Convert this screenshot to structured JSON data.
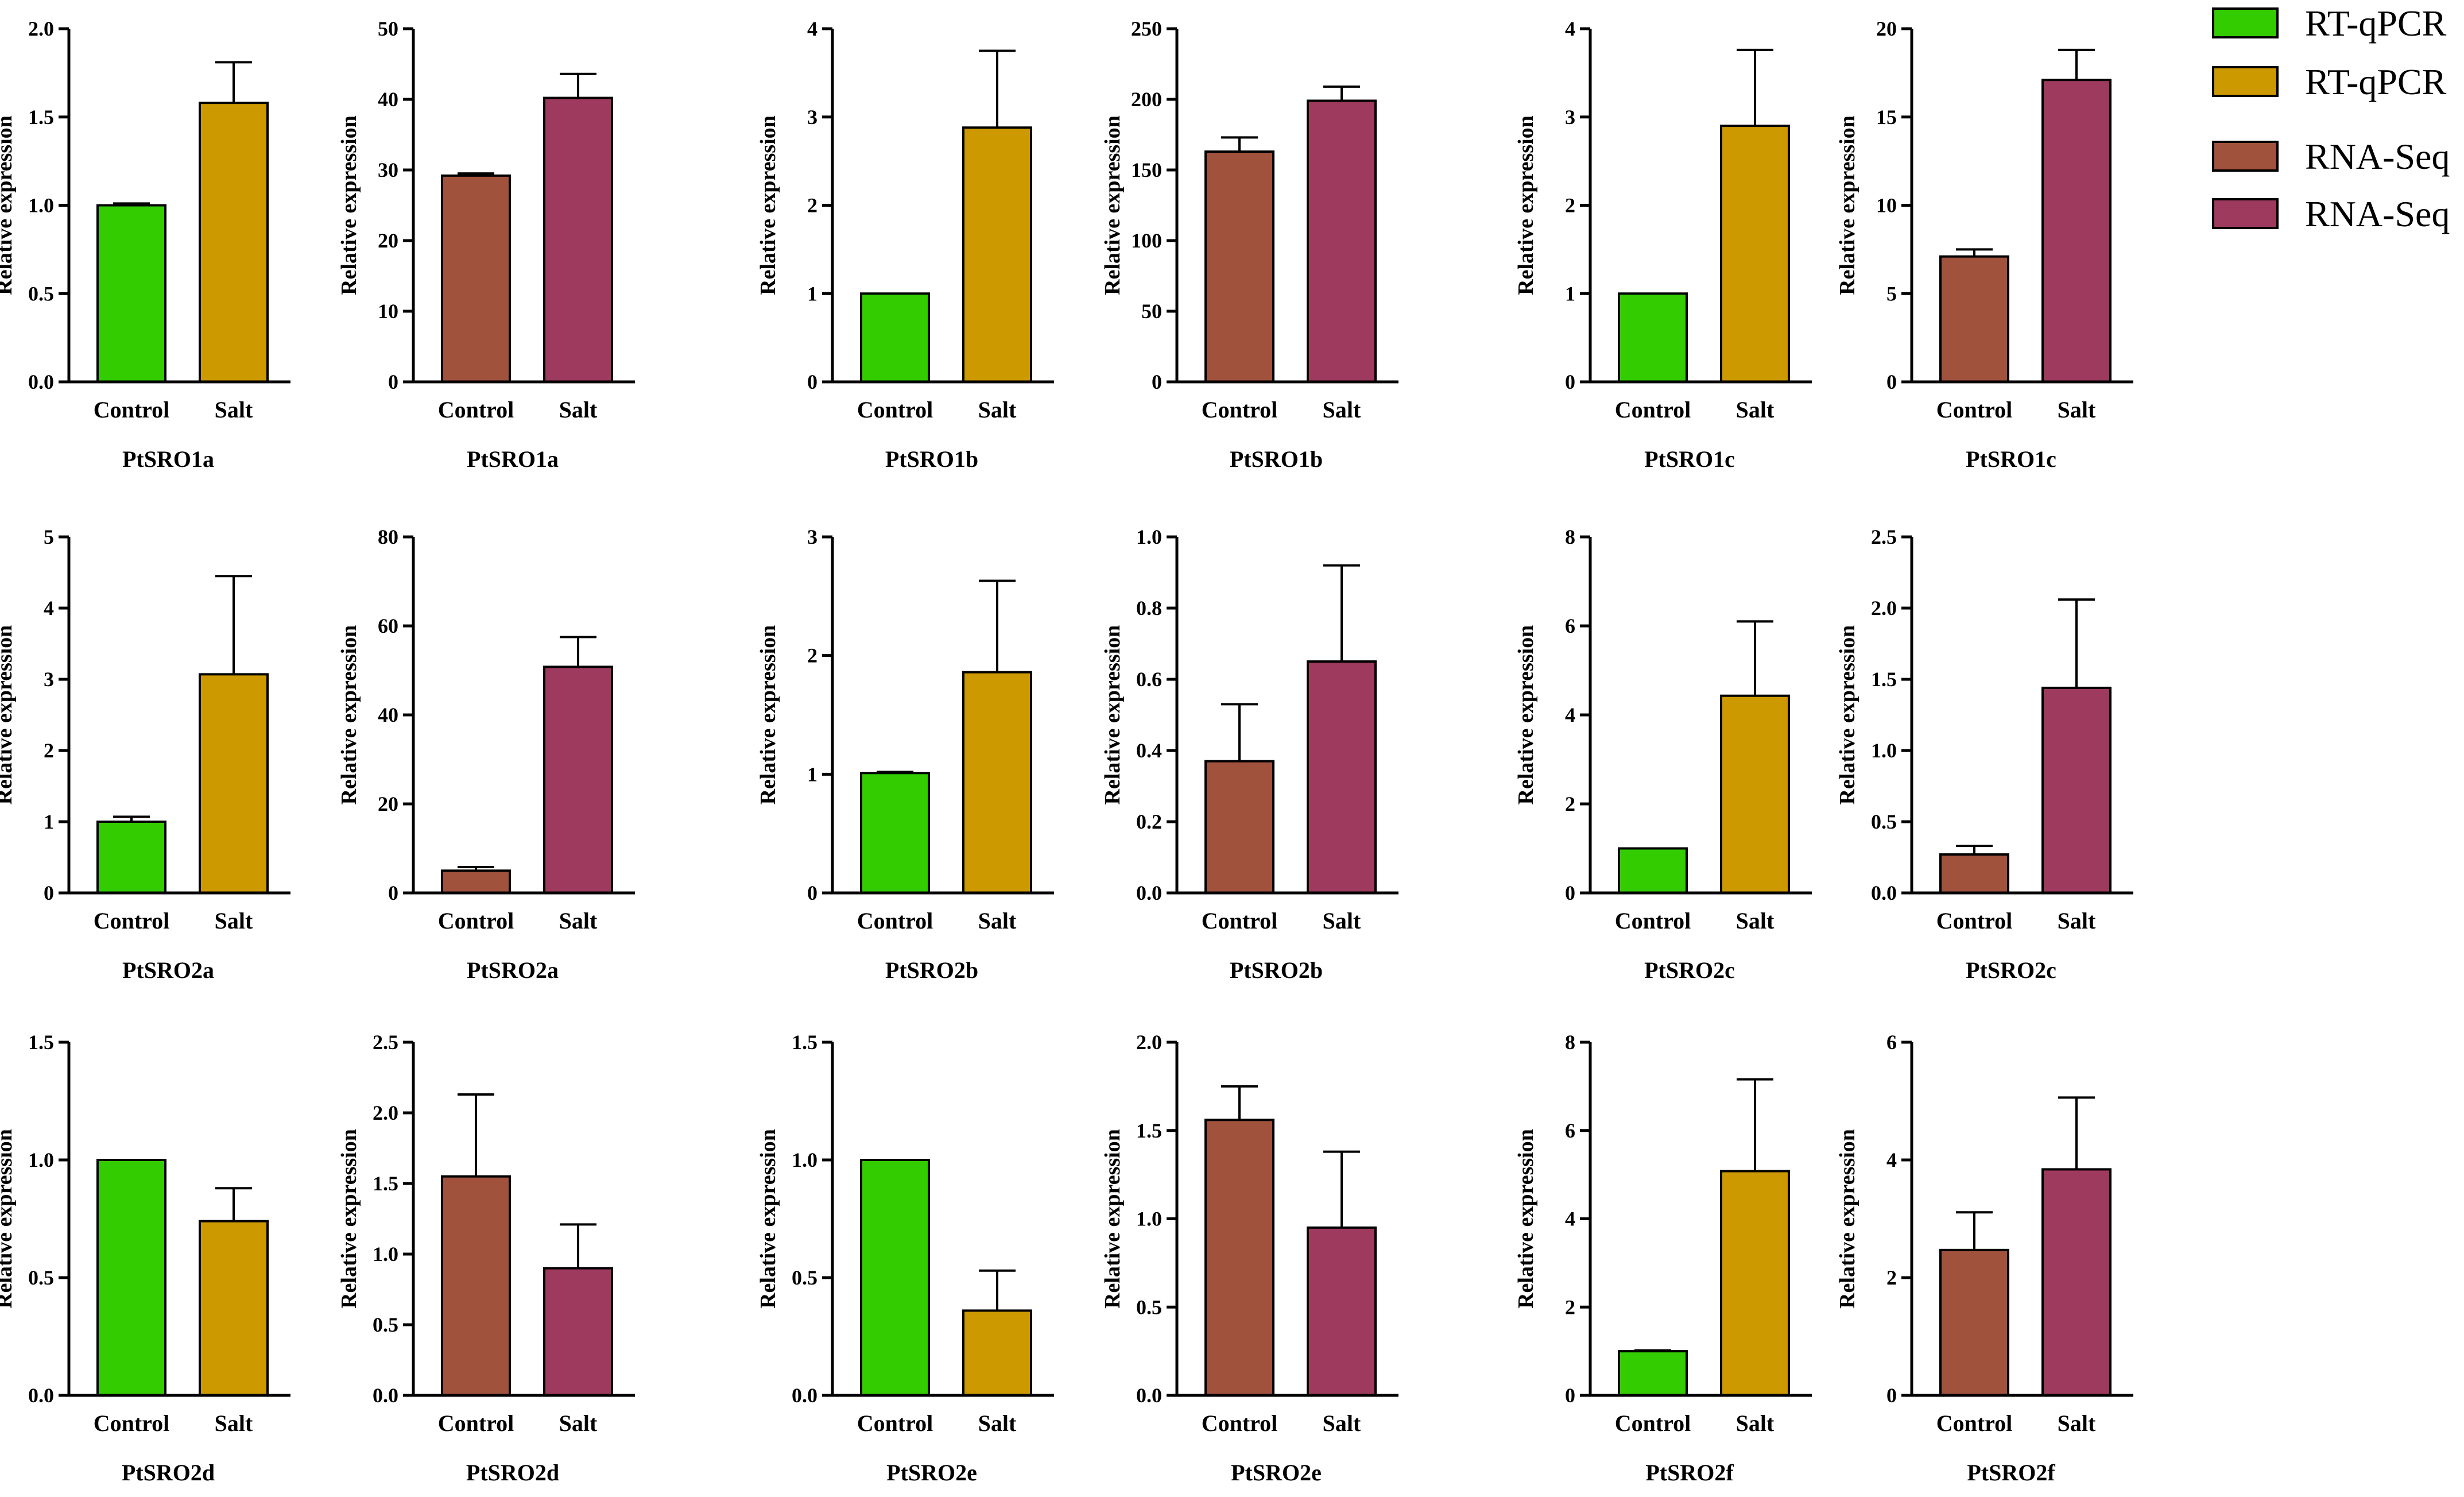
{
  "figure": {
    "colors": {
      "rtqpcr_control": "#33cc00",
      "rtqpcr_salt": "#cc9900",
      "rnaseq_control": "#a0523d",
      "rnaseq_salt": "#9e3a5e"
    },
    "legend": [
      {
        "label": "RT-qPCR",
        "color": "#33cc00"
      },
      {
        "label": "RT-qPCR",
        "color": "#cc9900"
      },
      {
        "label": "RNA-Seq",
        "color": "#a0523d"
      },
      {
        "label": "RNA-Seq",
        "color": "#9e3a5e"
      }
    ]
  },
  "chart_data": [
    {
      "type": "bar",
      "method": "RT-qPCR",
      "title": "PtSRO1a",
      "ylabel": "Relative expression",
      "categories": [
        "Control",
        "Salt"
      ],
      "values": [
        1.0,
        1.58
      ],
      "errors": [
        0.01,
        0.23
      ],
      "ylim": [
        0,
        2.0
      ],
      "yticks": [
        "0.0",
        "0.5",
        "1.0",
        "1.5",
        "2.0"
      ]
    },
    {
      "type": "bar",
      "method": "RNA-Seq",
      "title": "PtSRO1a",
      "ylabel": "Relative expression",
      "categories": [
        "Control",
        "Salt"
      ],
      "values": [
        29.2,
        40.2
      ],
      "errors": [
        0.3,
        3.4
      ],
      "ylim": [
        0,
        50
      ],
      "yticks": [
        "0",
        "10",
        "20",
        "30",
        "40",
        "50"
      ]
    },
    {
      "type": "bar",
      "method": "RT-qPCR",
      "title": "PtSRO1b",
      "ylabel": "Relative expression",
      "categories": [
        "Control",
        "Salt"
      ],
      "values": [
        1.0,
        2.88
      ],
      "errors": [
        0.0,
        0.87
      ],
      "ylim": [
        0,
        4
      ],
      "yticks": [
        "0",
        "1",
        "2",
        "3",
        "4"
      ]
    },
    {
      "type": "bar",
      "method": "RNA-Seq",
      "title": "PtSRO1b",
      "ylabel": "Relative expression",
      "categories": [
        "Control",
        "Salt"
      ],
      "values": [
        163,
        199
      ],
      "errors": [
        10,
        10
      ],
      "ylim": [
        0,
        250
      ],
      "yticks": [
        "0",
        "50",
        "100",
        "150",
        "200",
        "250"
      ]
    },
    {
      "type": "bar",
      "method": "RT-qPCR",
      "title": "PtSRO1c",
      "ylabel": "Relative expression",
      "categories": [
        "Control",
        "Salt"
      ],
      "values": [
        1.0,
        2.9
      ],
      "errors": [
        0.0,
        0.86
      ],
      "ylim": [
        0,
        4
      ],
      "yticks": [
        "0",
        "1",
        "2",
        "3",
        "4"
      ]
    },
    {
      "type": "bar",
      "method": "RNA-Seq",
      "title": "PtSRO1c",
      "ylabel": "Relative expression",
      "categories": [
        "Control",
        "Salt"
      ],
      "values": [
        7.1,
        17.1
      ],
      "errors": [
        0.4,
        1.7
      ],
      "ylim": [
        0,
        20
      ],
      "yticks": [
        "0",
        "5",
        "10",
        "15",
        "20"
      ]
    },
    {
      "type": "bar",
      "method": "RT-qPCR",
      "title": "PtSRO2a",
      "ylabel": "Relative expression",
      "categories": [
        "Control",
        "Salt"
      ],
      "values": [
        1.0,
        3.07
      ],
      "errors": [
        0.07,
        1.38
      ],
      "ylim": [
        0,
        5
      ],
      "yticks": [
        "0",
        "1",
        "2",
        "3",
        "4",
        "5"
      ]
    },
    {
      "type": "bar",
      "method": "RNA-Seq",
      "title": "PtSRO2a",
      "ylabel": "Relative expression",
      "categories": [
        "Control",
        "Salt"
      ],
      "values": [
        5.0,
        50.8
      ],
      "errors": [
        0.8,
        6.7
      ],
      "ylim": [
        0,
        80
      ],
      "yticks": [
        "0",
        "20",
        "40",
        "60",
        "80"
      ]
    },
    {
      "type": "bar",
      "method": "RT-qPCR",
      "title": "PtSRO2b",
      "ylabel": "Relative expression",
      "categories": [
        "Control",
        "Salt"
      ],
      "values": [
        1.01,
        1.86
      ],
      "errors": [
        0.01,
        0.77
      ],
      "ylim": [
        0,
        3
      ],
      "yticks": [
        "0",
        "1",
        "2",
        "3"
      ]
    },
    {
      "type": "bar",
      "method": "RNA-Seq",
      "title": "PtSRO2b",
      "ylabel": "Relative expression",
      "categories": [
        "Control",
        "Salt"
      ],
      "values": [
        0.37,
        0.65
      ],
      "errors": [
        0.16,
        0.27
      ],
      "ylim": [
        0,
        1.0
      ],
      "yticks": [
        "0.0",
        "0.2",
        "0.4",
        "0.6",
        "0.8",
        "1.0"
      ]
    },
    {
      "type": "bar",
      "method": "RT-qPCR",
      "title": "PtSRO2c",
      "ylabel": "Relative expression",
      "categories": [
        "Control",
        "Salt"
      ],
      "values": [
        1.0,
        4.43
      ],
      "errors": [
        0.0,
        1.67
      ],
      "ylim": [
        0,
        8
      ],
      "yticks": [
        "0",
        "2",
        "4",
        "6",
        "8"
      ]
    },
    {
      "type": "bar",
      "method": "RNA-Seq",
      "title": "PtSRO2c",
      "ylabel": "Relative expression",
      "categories": [
        "Control",
        "Salt"
      ],
      "values": [
        0.27,
        1.44
      ],
      "errors": [
        0.06,
        0.62
      ],
      "ylim": [
        0,
        2.5
      ],
      "yticks": [
        "0.0",
        "0.5",
        "1.0",
        "1.5",
        "2.0",
        "2.5"
      ]
    },
    {
      "type": "bar",
      "method": "RT-qPCR",
      "title": "PtSRO2d",
      "ylabel": "Relative expression",
      "categories": [
        "Control",
        "Salt"
      ],
      "values": [
        1.0,
        0.74
      ],
      "errors": [
        0.0,
        0.14
      ],
      "ylim": [
        0,
        1.5
      ],
      "yticks": [
        "0.0",
        "0.5",
        "1.0",
        "1.5"
      ]
    },
    {
      "type": "bar",
      "method": "RNA-Seq",
      "title": "PtSRO2d",
      "ylabel": "Relative expression",
      "categories": [
        "Control",
        "Salt"
      ],
      "values": [
        1.55,
        0.9
      ],
      "errors": [
        0.58,
        0.31
      ],
      "ylim": [
        0,
        2.5
      ],
      "yticks": [
        "0.0",
        "0.5",
        "1.0",
        "1.5",
        "2.0",
        "2.5"
      ]
    },
    {
      "type": "bar",
      "method": "RT-qPCR",
      "title": "PtSRO2e",
      "ylabel": "Relative expression",
      "categories": [
        "Control",
        "Salt"
      ],
      "values": [
        1.0,
        0.36
      ],
      "errors": [
        0.0,
        0.17
      ],
      "ylim": [
        0,
        1.5
      ],
      "yticks": [
        "0.0",
        "0.5",
        "1.0",
        "1.5"
      ]
    },
    {
      "type": "bar",
      "method": "RNA-Seq",
      "title": "PtSRO2e",
      "ylabel": "Relative expression",
      "categories": [
        "Control",
        "Salt"
      ],
      "values": [
        1.56,
        0.95
      ],
      "errors": [
        0.19,
        0.43
      ],
      "ylim": [
        0,
        2.0
      ],
      "yticks": [
        "0.0",
        "0.5",
        "1.0",
        "1.5",
        "2.0"
      ]
    },
    {
      "type": "bar",
      "method": "RT-qPCR",
      "title": "PtSRO2f",
      "ylabel": "Relative expression",
      "categories": [
        "Control",
        "Salt"
      ],
      "values": [
        1.0,
        5.08
      ],
      "errors": [
        0.02,
        2.08
      ],
      "ylim": [
        0,
        8
      ],
      "yticks": [
        "0",
        "2",
        "4",
        "6",
        "8"
      ]
    },
    {
      "type": "bar",
      "method": "RNA-Seq",
      "title": "PtSRO2f",
      "ylabel": "Relative expression",
      "categories": [
        "Control",
        "Salt"
      ],
      "values": [
        2.47,
        3.84
      ],
      "errors": [
        0.64,
        1.22
      ],
      "ylim": [
        0,
        6
      ],
      "yticks": [
        "0",
        "2",
        "4",
        "6"
      ]
    }
  ]
}
